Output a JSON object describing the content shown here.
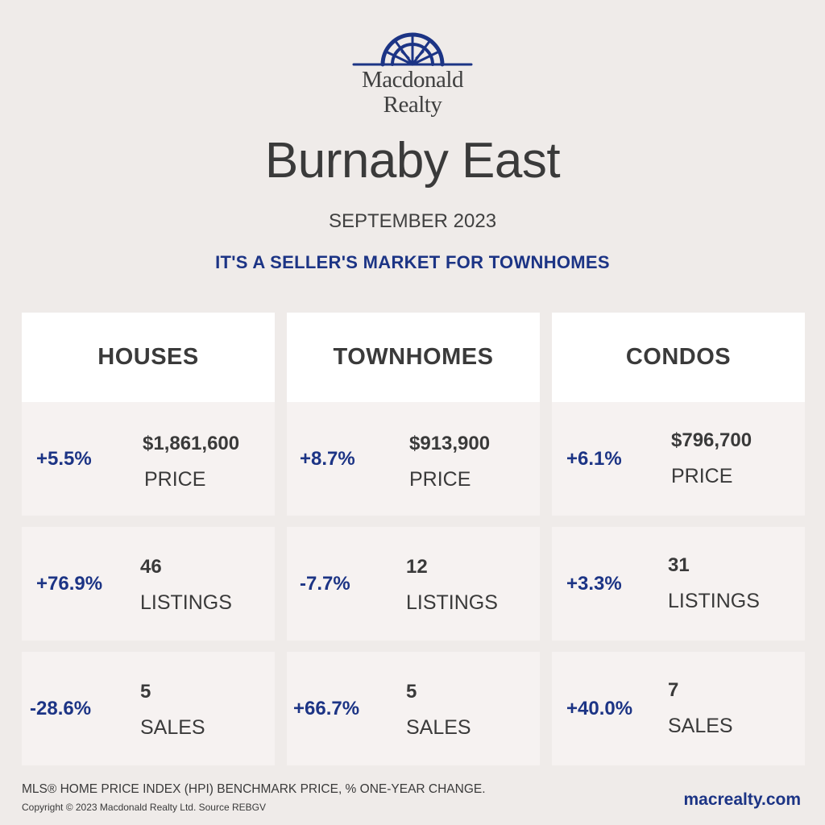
{
  "brand": {
    "logo_line1": "Macdonald",
    "logo_line2": "Realty",
    "logo_icon": "sunburst-roof-logo-icon",
    "accent_color": "#1c3485"
  },
  "header": {
    "title": "Burnaby East",
    "subtitle": "SEPTEMBER 2023",
    "tagline": "IT'S A SELLER'S MARKET FOR TOWNHOMES"
  },
  "columns": [
    {
      "heading": "HOUSES",
      "stats": [
        {
          "change": "+5.5%",
          "value": "$1,861,600",
          "label": "PRICE"
        },
        {
          "change": "+76.9%",
          "value": "46",
          "label": "LISTINGS"
        },
        {
          "change": "-28.6%",
          "value": "5",
          "label": "SALES"
        }
      ]
    },
    {
      "heading": "TOWNHOMES",
      "stats": [
        {
          "change": "+8.7%",
          "value": "$913,900",
          "label": "PRICE"
        },
        {
          "change": "-7.7%",
          "value": "12",
          "label": "LISTINGS"
        },
        {
          "change": "+66.7%",
          "value": "5",
          "label": "SALES"
        }
      ]
    },
    {
      "heading": "CONDOS",
      "stats": [
        {
          "change": "+6.1%",
          "value": "$796,700",
          "label": "PRICE"
        },
        {
          "change": "+3.3%",
          "value": "31",
          "label": "LISTINGS"
        },
        {
          "change": "+40.0%",
          "value": "7",
          "label": "SALES"
        }
      ]
    }
  ],
  "footer": {
    "note": "MLS® HOME PRICE INDEX (HPI) BENCHMARK PRICE, % ONE-YEAR CHANGE.",
    "copyright": "Copyright © 2023 Macdonald Realty Ltd. Source REBGV",
    "website": "macrealty.com"
  }
}
